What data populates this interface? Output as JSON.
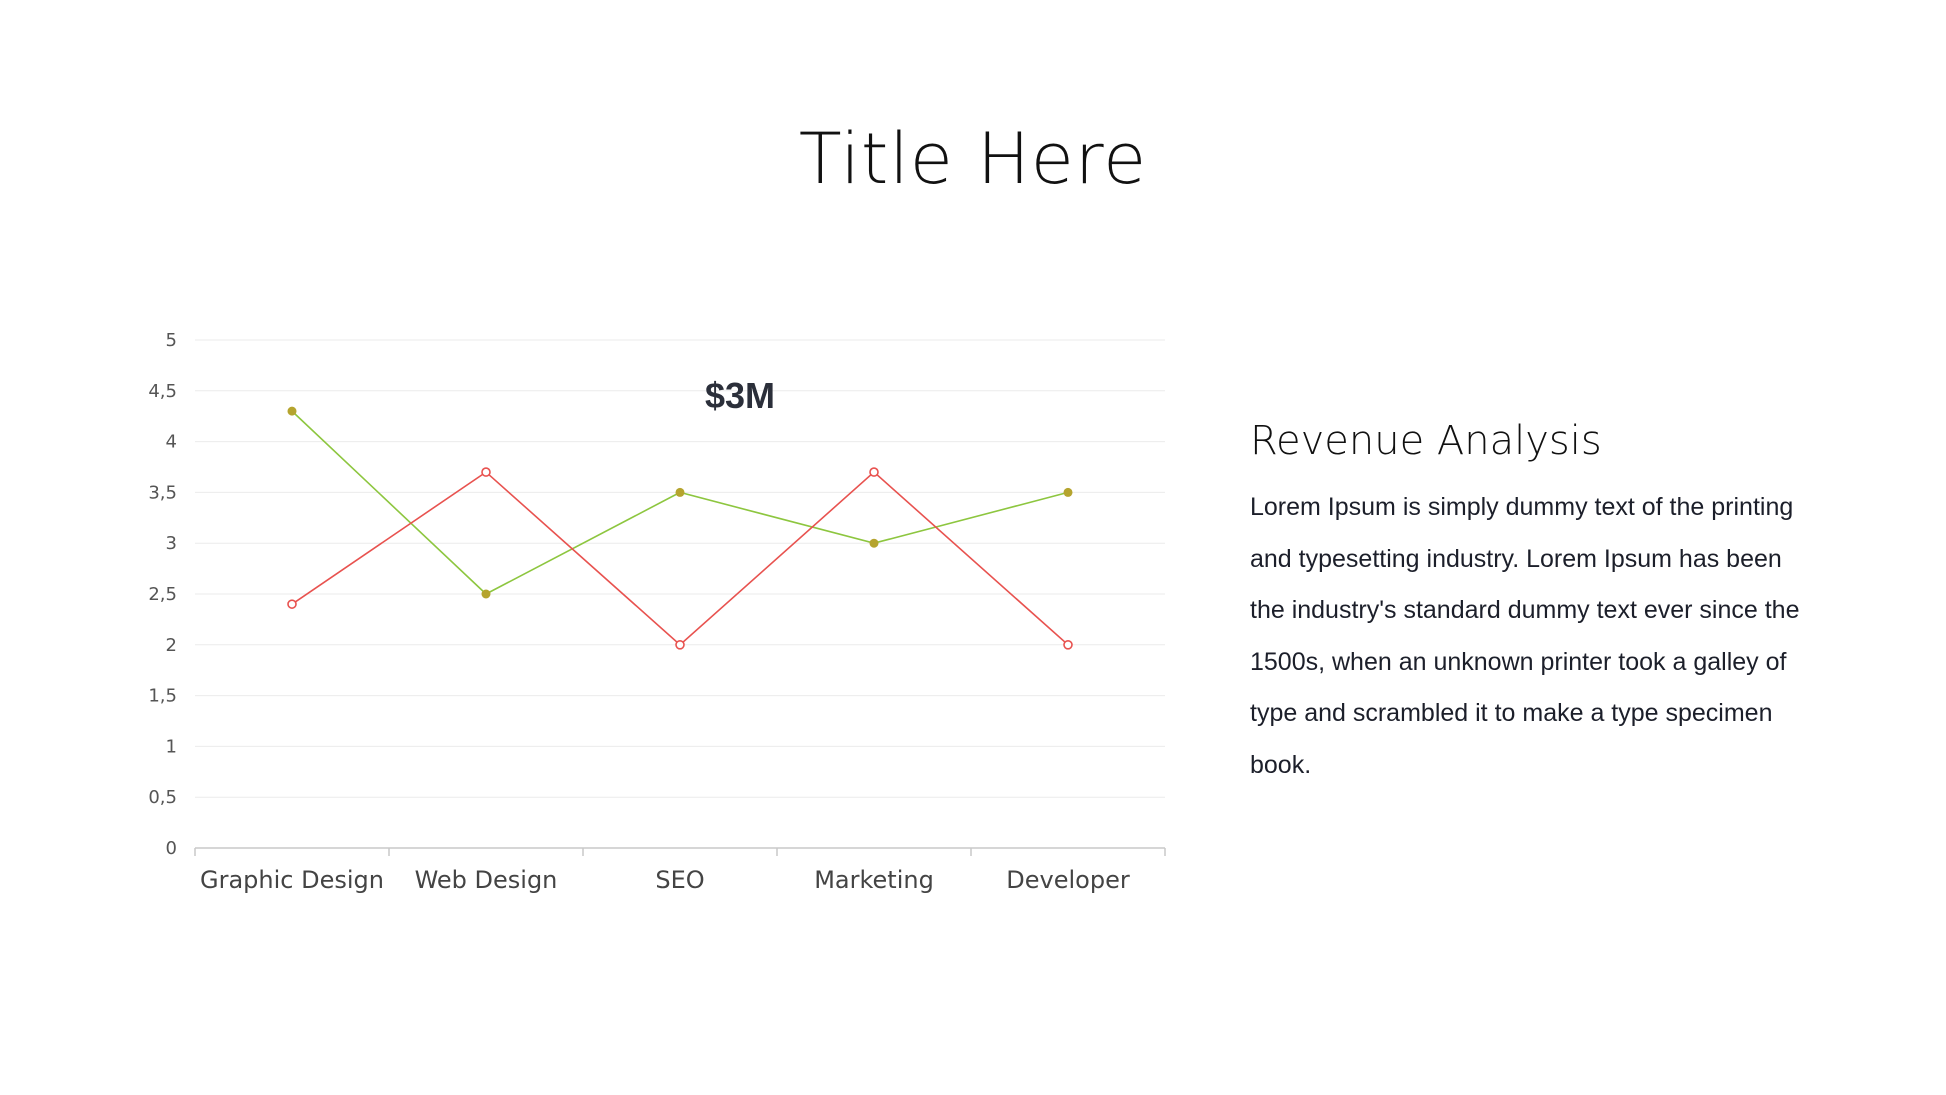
{
  "slide": {
    "title": "Title Here"
  },
  "side_panel": {
    "heading": "Revenue Analysis",
    "body": "Lorem Ipsum is simply dummy text of the printing and typesetting industry. Lorem Ipsum has been the industry's standard dummy text ever since the 1500s, when an unknown printer took a galley of type and scrambled it to make a type specimen book."
  },
  "chart_data": {
    "type": "line",
    "categories": [
      "Graphic Design",
      "Web Design",
      "SEO",
      "Marketing",
      "Developer"
    ],
    "series": [
      {
        "values": [
          4.3,
          2.5,
          3.5,
          3.0,
          3.5
        ],
        "color": "#8dc63f",
        "marker_color": "#b5a42e",
        "marker": "filled"
      },
      {
        "values": [
          2.4,
          3.7,
          2.0,
          3.7,
          2.0
        ],
        "color": "#e8524f",
        "marker_color": "#e8524f",
        "marker": "hollow"
      }
    ],
    "y_ticks": [
      "0",
      "0,5",
      "1",
      "1,5",
      "2",
      "2,5",
      "3",
      "3,5",
      "4",
      "4,5",
      "5"
    ],
    "ylim": [
      0,
      5
    ],
    "grid": true,
    "annotation": {
      "text": "$3M",
      "category": "SEO",
      "y": 4.45
    },
    "colors": {
      "grid": "#ebebeb",
      "axis": "#c9c9c9"
    }
  }
}
